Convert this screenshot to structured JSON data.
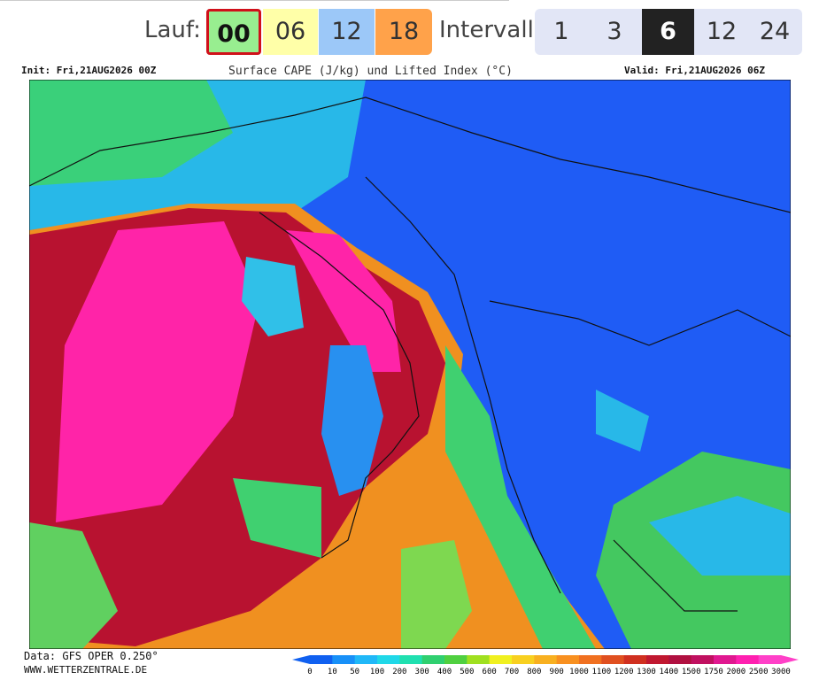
{
  "nav": {
    "run_label": "Lauf:",
    "runs": [
      "00",
      "06",
      "12",
      "18"
    ],
    "interval_label": "Intervall",
    "intervals": [
      "1",
      "3",
      "6",
      "12",
      "24"
    ]
  },
  "map": {
    "init": "Init: Fri,21AUG2026 00Z",
    "title": "Surface CAPE (J/kg) und Lifted Index (°C)",
    "valid": "Valid: Fri,21AUG2026 06Z",
    "data_source": "Data: GFS OPER 0.250°",
    "website": "WWW.WETTERZENTRALE.DE",
    "scale_labels": [
      "0",
      "10",
      "50",
      "100",
      "200",
      "300",
      "400",
      "500",
      "600",
      "700",
      "800",
      "900",
      "1000",
      "1100",
      "1200",
      "1300",
      "1400",
      "1500",
      "1750",
      "2000",
      "2500",
      "3000"
    ]
  }
}
